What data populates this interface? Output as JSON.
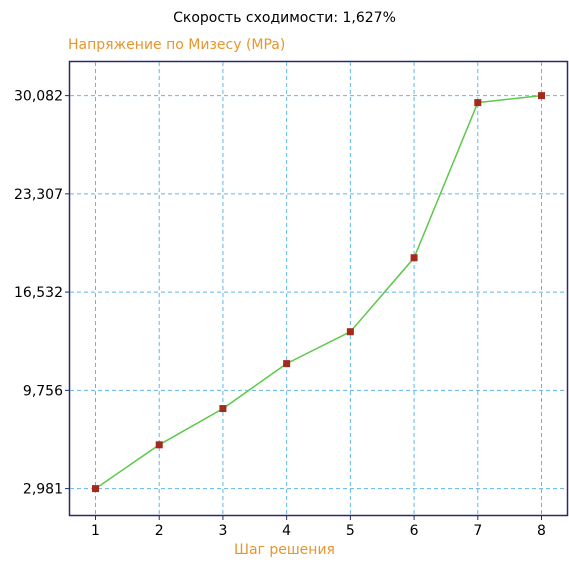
{
  "colors": {
    "label_accent": "#e8952c",
    "line": "#5cc94a",
    "marker": "#a32a1c",
    "grid": "#5fb8e6",
    "frame": "#2a2a6a"
  },
  "chart_data": {
    "type": "line",
    "title": "Скорость сходимости: 1,627%",
    "xlabel": "Шаг решения",
    "ylabel": "Напряжение по Мизесу (MPa)",
    "categories": [
      "1",
      "2",
      "3",
      "4",
      "5",
      "6",
      "7",
      "8"
    ],
    "x": [
      1,
      2,
      3,
      4,
      5,
      6,
      7,
      8
    ],
    "y_ticks": [
      2.981,
      9.756,
      16.532,
      23.307,
      30.082
    ],
    "y_tick_labels": [
      "2,981",
      "9,756",
      "16,532",
      "23,307",
      "30,082"
    ],
    "xlim": [
      0.6,
      8.4
    ],
    "ylim": [
      1.16,
      32.4
    ],
    "grid": true,
    "series": [
      {
        "values": [
          2.981,
          6.0,
          8.5,
          11.6,
          13.8,
          18.9,
          29.6,
          30.082
        ]
      }
    ]
  }
}
